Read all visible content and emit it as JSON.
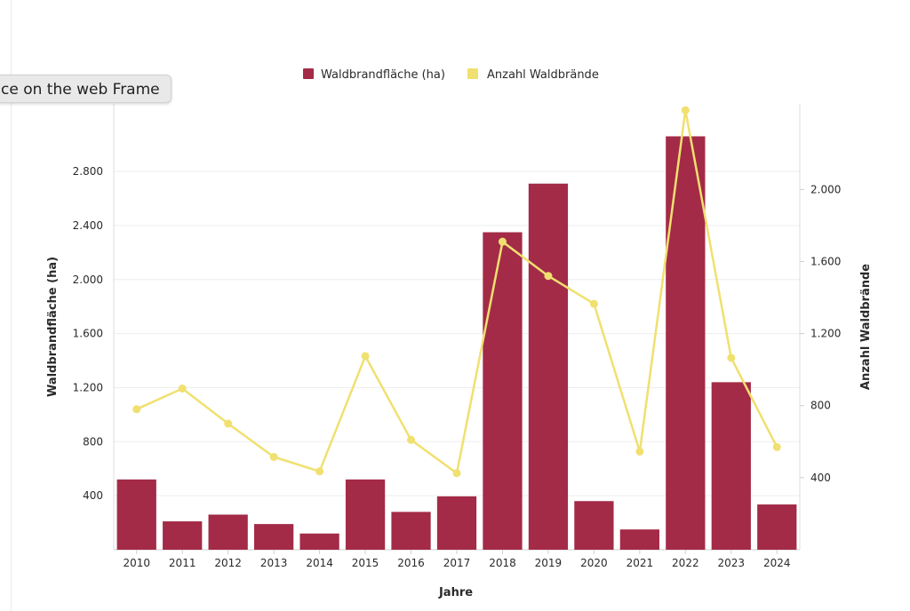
{
  "tooltip": {
    "text": "ce on the web Frame"
  },
  "chart_data": {
    "type": "bar",
    "categories": [
      "2010",
      "2011",
      "2012",
      "2013",
      "2014",
      "2015",
      "2016",
      "2017",
      "2018",
      "2019",
      "2020",
      "2021",
      "2022",
      "2023",
      "2024"
    ],
    "series": [
      {
        "name": "Waldbrandfläche (ha)",
        "type": "bar",
        "axis": "left",
        "color": "#a32b47",
        "values": [
          520,
          210,
          260,
          190,
          120,
          520,
          280,
          395,
          2350,
          2710,
          360,
          150,
          3060,
          1240,
          335
        ]
      },
      {
        "name": "Anzahl Waldbrände",
        "type": "line",
        "axis": "right",
        "color": "#f0e070",
        "values": [
          780,
          895,
          700,
          515,
          435,
          1075,
          610,
          425,
          1710,
          1520,
          1365,
          545,
          2440,
          1065,
          570
        ]
      }
    ],
    "xlabel": "Jahre",
    "ylabel": "Waldbrandfläche (ha)",
    "y2label": "Anzahl Waldbrände",
    "ylim": [
      0,
      3300
    ],
    "y2lim": [
      0,
      2475
    ],
    "yticks": [
      "400",
      "800",
      "1.200",
      "1.600",
      "2.000",
      "2.400",
      "2.800"
    ],
    "ytick_values": [
      400,
      800,
      1200,
      1600,
      2000,
      2400,
      2800
    ],
    "y2ticks": [
      "400",
      "800",
      "1.200",
      "1.600",
      "2.000"
    ],
    "y2tick_values": [
      400,
      800,
      1200,
      1600,
      2000
    ],
    "grid": true,
    "legend": "top-center"
  }
}
